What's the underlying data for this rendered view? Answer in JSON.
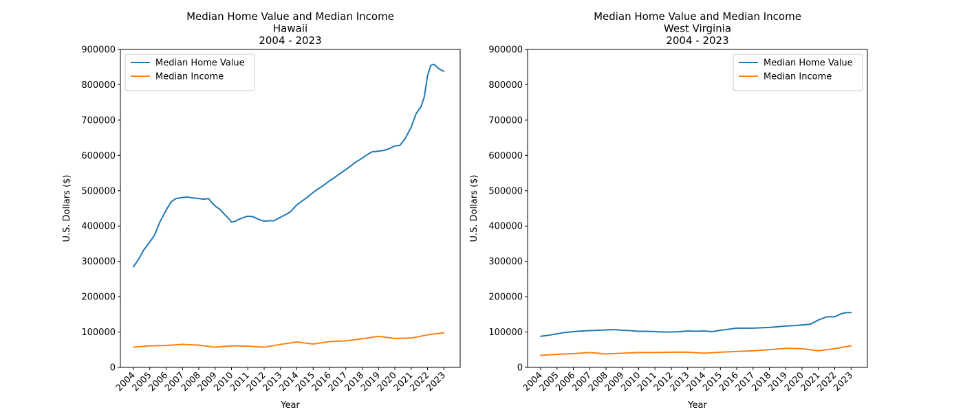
{
  "chart_data": [
    {
      "type": "line",
      "title": [
        "Median Home Value and Median Income",
        "Hawaii",
        "2004 - 2023"
      ],
      "xlabel": "Year",
      "ylabel": "U.S. Dollars ($)",
      "xlim": [
        2003.2,
        2024.0
      ],
      "ylim": [
        0,
        900000
      ],
      "xticks": [
        "2004",
        "2005",
        "2006",
        "2007",
        "2008",
        "2009",
        "2010",
        "2011",
        "2012",
        "2013",
        "2014",
        "2015",
        "2016",
        "2017",
        "2018",
        "2019",
        "2020",
        "2021",
        "2022",
        "2023"
      ],
      "yticks": [
        0,
        100000,
        200000,
        300000,
        400000,
        500000,
        600000,
        700000,
        800000,
        900000
      ],
      "legend_position": "top-left",
      "series": [
        {
          "name": "Median Home Value",
          "color": "#1f77b4",
          "points": [
            [
              2004.0,
              285000
            ],
            [
              2004.3,
              305000
            ],
            [
              2004.6,
              330000
            ],
            [
              2005.0,
              355000
            ],
            [
              2005.3,
              375000
            ],
            [
              2005.6,
              410000
            ],
            [
              2006.0,
              445000
            ],
            [
              2006.3,
              468000
            ],
            [
              2006.6,
              478000
            ],
            [
              2007.0,
              481000
            ],
            [
              2007.3,
              482000
            ],
            [
              2007.6,
              480000
            ],
            [
              2008.0,
              478000
            ],
            [
              2008.3,
              476000
            ],
            [
              2008.6,
              478000
            ],
            [
              2008.8,
              466000
            ],
            [
              2009.0,
              457000
            ],
            [
              2009.3,
              447000
            ],
            [
              2009.6,
              432000
            ],
            [
              2009.9,
              418000
            ],
            [
              2010.0,
              411000
            ],
            [
              2010.2,
              413000
            ],
            [
              2010.5,
              420000
            ],
            [
              2010.8,
              425000
            ],
            [
              2011.0,
              428000
            ],
            [
              2011.3,
              427000
            ],
            [
              2011.6,
              420000
            ],
            [
              2012.0,
              414000
            ],
            [
              2012.3,
              415000
            ],
            [
              2012.6,
              415000
            ],
            [
              2013.0,
              425000
            ],
            [
              2013.3,
              432000
            ],
            [
              2013.6,
              440000
            ],
            [
              2014.0,
              460000
            ],
            [
              2014.3,
              470000
            ],
            [
              2014.6,
              480000
            ],
            [
              2015.0,
              495000
            ],
            [
              2015.3,
              505000
            ],
            [
              2015.6,
              514000
            ],
            [
              2016.0,
              528000
            ],
            [
              2016.3,
              537000
            ],
            [
              2016.6,
              547000
            ],
            [
              2017.0,
              560000
            ],
            [
              2017.3,
              570000
            ],
            [
              2017.6,
              581000
            ],
            [
              2018.0,
              592000
            ],
            [
              2018.3,
              602000
            ],
            [
              2018.6,
              610000
            ],
            [
              2019.0,
              612000
            ],
            [
              2019.3,
              614000
            ],
            [
              2019.6,
              618000
            ],
            [
              2020.0,
              627000
            ],
            [
              2020.3,
              628000
            ],
            [
              2020.6,
              645000
            ],
            [
              2021.0,
              680000
            ],
            [
              2021.3,
              718000
            ],
            [
              2021.6,
              738000
            ],
            [
              2021.8,
              765000
            ],
            [
              2022.0,
              825000
            ],
            [
              2022.2,
              855000
            ],
            [
              2022.4,
              858000
            ],
            [
              2022.7,
              845000
            ],
            [
              2023.0,
              838000
            ]
          ]
        },
        {
          "name": "Median Income",
          "color": "#ff7f0e",
          "points": [
            [
              2004,
              57000
            ],
            [
              2005,
              61000
            ],
            [
              2006,
              62000
            ],
            [
              2007,
              65000
            ],
            [
              2008,
              63000
            ],
            [
              2009,
              57000
            ],
            [
              2010,
              61000
            ],
            [
              2011,
              60000
            ],
            [
              2012,
              57000
            ],
            [
              2013,
              65000
            ],
            [
              2014,
              72000
            ],
            [
              2015,
              66000
            ],
            [
              2016,
              73000
            ],
            [
              2017,
              75000
            ],
            [
              2018,
              81000
            ],
            [
              2019,
              88000
            ],
            [
              2020,
              82000
            ],
            [
              2021,
              83000
            ],
            [
              2022,
              92000
            ],
            [
              2023,
              98000
            ]
          ]
        }
      ]
    },
    {
      "type": "line",
      "title": [
        "Median Home Value and Median Income",
        "West Virginia",
        "2004 - 2023"
      ],
      "xlabel": "Year",
      "ylabel": "U.S. Dollars ($)",
      "xlim": [
        2003.2,
        2024.0
      ],
      "ylim": [
        0,
        900000
      ],
      "xticks": [
        "2004",
        "2005",
        "2006",
        "2007",
        "2008",
        "2009",
        "2010",
        "2011",
        "2012",
        "2013",
        "2014",
        "2015",
        "2016",
        "2017",
        "2018",
        "2019",
        "2020",
        "2021",
        "2022",
        "2023"
      ],
      "yticks": [
        0,
        100000,
        200000,
        300000,
        400000,
        500000,
        600000,
        700000,
        800000,
        900000
      ],
      "legend_position": "top-right",
      "series": [
        {
          "name": "Median Home Value",
          "color": "#1f77b4",
          "points": [
            [
              2004.0,
              88000
            ],
            [
              2004.5,
              91000
            ],
            [
              2005.0,
              95000
            ],
            [
              2005.5,
              99000
            ],
            [
              2006.0,
              101000
            ],
            [
              2006.5,
              103000
            ],
            [
              2007.0,
              104000
            ],
            [
              2007.5,
              105000
            ],
            [
              2008.0,
              106000
            ],
            [
              2008.5,
              107000
            ],
            [
              2009.0,
              105000
            ],
            [
              2009.5,
              104000
            ],
            [
              2010.0,
              102000
            ],
            [
              2010.5,
              102000
            ],
            [
              2011.0,
              101000
            ],
            [
              2011.5,
              100000
            ],
            [
              2012.0,
              100000
            ],
            [
              2012.5,
              101000
            ],
            [
              2013.0,
              103000
            ],
            [
              2013.5,
              102000
            ],
            [
              2014.0,
              103000
            ],
            [
              2014.5,
              101000
            ],
            [
              2015.0,
              105000
            ],
            [
              2015.5,
              108000
            ],
            [
              2016.0,
              111000
            ],
            [
              2016.5,
              111000
            ],
            [
              2017.0,
              111000
            ],
            [
              2017.5,
              112000
            ],
            [
              2018.0,
              113000
            ],
            [
              2018.5,
              115000
            ],
            [
              2019.0,
              117000
            ],
            [
              2019.5,
              118000
            ],
            [
              2020.0,
              120000
            ],
            [
              2020.5,
              122000
            ],
            [
              2021.0,
              134000
            ],
            [
              2021.5,
              143000
            ],
            [
              2022.0,
              143000
            ],
            [
              2022.4,
              152000
            ],
            [
              2022.7,
              155000
            ],
            [
              2023.0,
              155000
            ]
          ]
        },
        {
          "name": "Median Income",
          "color": "#ff7f0e",
          "points": [
            [
              2004,
              34000
            ],
            [
              2005,
              37000
            ],
            [
              2006,
              39000
            ],
            [
              2007,
              42000
            ],
            [
              2008,
              38000
            ],
            [
              2009,
              40000
            ],
            [
              2010,
              42000
            ],
            [
              2011,
              42000
            ],
            [
              2012,
              43000
            ],
            [
              2013,
              43000
            ],
            [
              2014,
              40000
            ],
            [
              2015,
              43000
            ],
            [
              2016,
              45000
            ],
            [
              2017,
              47000
            ],
            [
              2018,
              50000
            ],
            [
              2019,
              54000
            ],
            [
              2020,
              53000
            ],
            [
              2021,
              47000
            ],
            [
              2022,
              53000
            ],
            [
              2023,
              61000
            ]
          ]
        }
      ]
    }
  ]
}
